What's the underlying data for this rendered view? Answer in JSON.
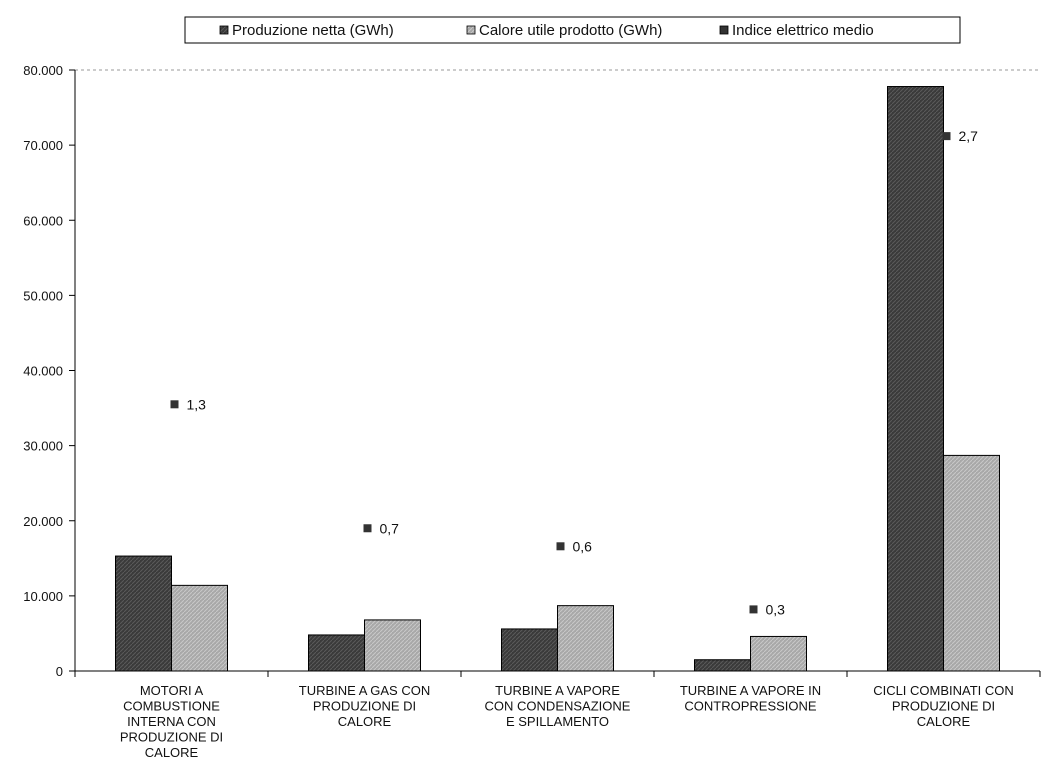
{
  "chart_data": {
    "type": "bar",
    "categories": [
      "MOTORI A COMBUSTIONE INTERNA CON PRODUZIONE DI CALORE",
      "TURBINE A GAS CON PRODUZIONE DI CALORE",
      "TURBINE A VAPORE CON CONDENSAZIONE E SPILLAMENTO",
      "TURBINE A VAPORE IN CONTROPRESSIONE",
      "CICLI COMBINATI CON PRODUZIONE DI CALORE"
    ],
    "category_lines": [
      [
        "MOTORI A",
        "COMBUSTIONE",
        "INTERNA CON",
        "PRODUZIONE DI",
        "CALORE"
      ],
      [
        "TURBINE A GAS CON",
        "PRODUZIONE DI",
        "CALORE"
      ],
      [
        "TURBINE A VAPORE",
        "CON CONDENSAZIONE",
        "E SPILLAMENTO"
      ],
      [
        "TURBINE A VAPORE IN",
        "CONTROPRESSIONE"
      ],
      [
        "CICLI COMBINATI CON",
        "PRODUZIONE DI",
        "CALORE"
      ]
    ],
    "series": [
      {
        "name": "Produzione netta (GWh)",
        "kind": "bar",
        "color": "#3a3a3a",
        "values": [
          15300,
          4800,
          5600,
          1500,
          77800
        ]
      },
      {
        "name": "Calore utile prodotto (GWh)",
        "kind": "bar",
        "color": "#a8a8a8",
        "values": [
          11400,
          6800,
          8700,
          4600,
          28700
        ]
      },
      {
        "name": "Indice elettrico medio",
        "kind": "marker",
        "color": "#333333",
        "values": [
          1.3,
          0.7,
          0.6,
          0.3,
          2.7
        ],
        "labels": [
          "1,3",
          "0,7",
          "0,6",
          "0,3",
          "2,7"
        ],
        "plot_positions": [
          35500,
          19000,
          16600,
          8200,
          71200
        ]
      }
    ],
    "y_ticks": [
      "0",
      "10.000",
      "20.000",
      "30.000",
      "40.000",
      "50.000",
      "60.000",
      "70.000",
      "80.000"
    ],
    "ylim": [
      0,
      80000
    ],
    "grid": false,
    "legend": "top-center",
    "title": "",
    "xlabel": "",
    "ylabel": ""
  }
}
